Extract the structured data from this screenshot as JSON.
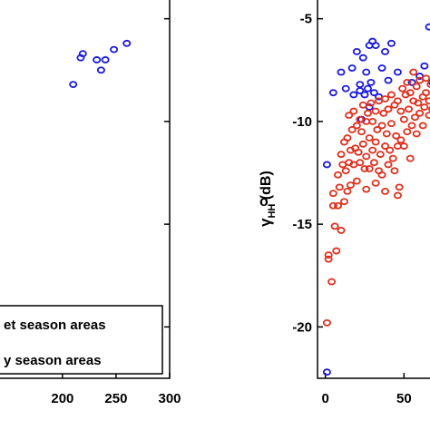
{
  "chart_data": [
    {
      "type": "scatter",
      "panel": "left",
      "xlim": [
        140,
        300
      ],
      "ylim": [
        -22.5,
        -4
      ],
      "x_ticks": [
        "200",
        "250",
        "300"
      ],
      "x_tick_values": [
        200,
        250,
        300
      ],
      "y_tick_values": [
        -5,
        -10,
        -15,
        -20
      ],
      "legend": {
        "placement": "bottom-right",
        "entries": [
          "et season areas",
          "y season areas"
        ]
      },
      "series": [
        {
          "color": "#1a1adc",
          "points": [
            [
              210,
              -8.2
            ],
            [
              217,
              -6.9
            ],
            [
              219,
              -6.7
            ],
            [
              232,
              -7.0
            ],
            [
              236,
              -7.5
            ],
            [
              240,
              -7.0
            ],
            [
              248,
              -6.5
            ],
            [
              260,
              -6.2
            ]
          ]
        }
      ]
    },
    {
      "type": "scatter",
      "panel": "right",
      "ylabel_main": "γ",
      "ylabel_sup": "o",
      "ylabel_sub": "HH",
      "ylabel_unit": " (dB)",
      "xlim": [
        -5,
        70
      ],
      "ylim": [
        -22.5,
        -4
      ],
      "x_ticks": [
        "0",
        "50"
      ],
      "x_tick_values": [
        0,
        50
      ],
      "y_ticks": [
        "-5",
        "-10",
        "-15",
        "-20"
      ],
      "y_tick_values": [
        -5,
        -10,
        -15,
        -20
      ],
      "series": [
        {
          "color": "#1a1adc",
          "points": [
            [
              1,
              -12.1
            ],
            [
              1,
              -22.2
            ],
            [
              5,
              -8.6
            ],
            [
              10,
              -7.6
            ],
            [
              13,
              -8.4
            ],
            [
              17,
              -7.4
            ],
            [
              18,
              -8.7
            ],
            [
              20,
              -6.6
            ],
            [
              22,
              -8.2
            ],
            [
              24,
              -6.9
            ],
            [
              25,
              -8.7
            ],
            [
              26,
              -7.6
            ],
            [
              27,
              -8.4
            ],
            [
              28,
              -6.3
            ],
            [
              29,
              -8.1
            ],
            [
              30,
              -6.1
            ],
            [
              31,
              -8.6
            ],
            [
              32,
              -6.3
            ],
            [
              34,
              -8.8
            ],
            [
              36,
              -7.4
            ],
            [
              38,
              -6.6
            ],
            [
              40,
              -8.0
            ],
            [
              42,
              -6.2
            ],
            [
              46,
              -7.6
            ],
            [
              55,
              -8.1
            ],
            [
              60,
              -7.8
            ],
            [
              63,
              -7.3
            ],
            [
              66,
              -5.4
            ],
            [
              68,
              -8.1
            ],
            [
              23,
              -9.9
            ],
            [
              22,
              -8.5
            ],
            [
              28,
              -9.3
            ]
          ]
        },
        {
          "color": "#e0301e",
          "points": [
            [
              1,
              -19.8
            ],
            [
              2,
              -16.5
            ],
            [
              2,
              -16.7
            ],
            [
              4,
              -17.8
            ],
            [
              5,
              -14.1
            ],
            [
              5,
              -13.5
            ],
            [
              6,
              -15.1
            ],
            [
              7,
              -16.3
            ],
            [
              8,
              -12.6
            ],
            [
              8,
              -14.1
            ],
            [
              9,
              -13.2
            ],
            [
              10,
              -11.6
            ],
            [
              10,
              -15.3
            ],
            [
              11,
              -12.1
            ],
            [
              12,
              -11.0
            ],
            [
              12,
              -13.9
            ],
            [
              13,
              -12.4
            ],
            [
              14,
              -10.8
            ],
            [
              14,
              -13.4
            ],
            [
              15,
              -9.7
            ],
            [
              15,
              -12.0
            ],
            [
              16,
              -11.4
            ],
            [
              16,
              -13.1
            ],
            [
              17,
              -10.4
            ],
            [
              18,
              -12.1
            ],
            [
              18,
              -9.5
            ],
            [
              19,
              -11.3
            ],
            [
              20,
              -10.2
            ],
            [
              20,
              -12.9
            ],
            [
              21,
              -11.5
            ],
            [
              22,
              -9.9
            ],
            [
              22,
              -12.0
            ],
            [
              23,
              -10.5
            ],
            [
              24,
              -11.1
            ],
            [
              24,
              -9.2
            ],
            [
              25,
              -12.3
            ],
            [
              26,
              -10.0
            ],
            [
              26,
              -11.7
            ],
            [
              27,
              -9.6
            ],
            [
              28,
              -10.8
            ],
            [
              28,
              -12.3
            ],
            [
              29,
              -9.1
            ],
            [
              30,
              -11.4
            ],
            [
              30,
              -10.0
            ],
            [
              31,
              -12.0
            ],
            [
              32,
              -9.5
            ],
            [
              32,
              -11.0
            ],
            [
              33,
              -10.4
            ],
            [
              34,
              -12.4
            ],
            [
              34,
              -9.0
            ],
            [
              35,
              -11.6
            ],
            [
              36,
              -10.2
            ],
            [
              36,
              -12.6
            ],
            [
              37,
              -9.6
            ],
            [
              38,
              -11.2
            ],
            [
              38,
              -8.9
            ],
            [
              39,
              -10.6
            ],
            [
              40,
              -12.1
            ],
            [
              40,
              -9.4
            ],
            [
              41,
              -11.4
            ],
            [
              42,
              -10.1
            ],
            [
              42,
              -8.7
            ],
            [
              43,
              -11.8
            ],
            [
              44,
              -9.2
            ],
            [
              44,
              -12.4
            ],
            [
              45,
              -10.7
            ],
            [
              46,
              -9.0
            ],
            [
              46,
              -11.2
            ],
            [
              47,
              -13.2
            ],
            [
              48,
              -9.5
            ],
            [
              48,
              -10.9
            ],
            [
              49,
              -8.4
            ],
            [
              50,
              -11.2
            ],
            [
              50,
              -9.9
            ],
            [
              51,
              -8.7
            ],
            [
              52,
              -10.5
            ],
            [
              52,
              -8.1
            ],
            [
              53,
              -9.4
            ],
            [
              54,
              -11.8
            ],
            [
              54,
              -8.6
            ],
            [
              55,
              -10.2
            ],
            [
              56,
              -9.0
            ],
            [
              56,
              -7.6
            ],
            [
              57,
              -9.8
            ],
            [
              58,
              -8.3
            ],
            [
              58,
              -10.6
            ],
            [
              59,
              -9.1
            ],
            [
              60,
              -8.0
            ],
            [
              60,
              -9.6
            ],
            [
              62,
              -8.8
            ],
            [
              62,
              -10.2
            ],
            [
              63,
              -9.3
            ],
            [
              64,
              -7.9
            ],
            [
              64,
              -8.6
            ],
            [
              66,
              -9.0
            ],
            [
              66,
              -9.7
            ],
            [
              67,
              -8.2
            ],
            [
              68,
              -9.4
            ],
            [
              38,
              -13.4
            ],
            [
              46,
              -13.6
            ],
            [
              32,
              -13.0
            ],
            [
              26,
              -13.3
            ]
          ]
        }
      ]
    }
  ]
}
